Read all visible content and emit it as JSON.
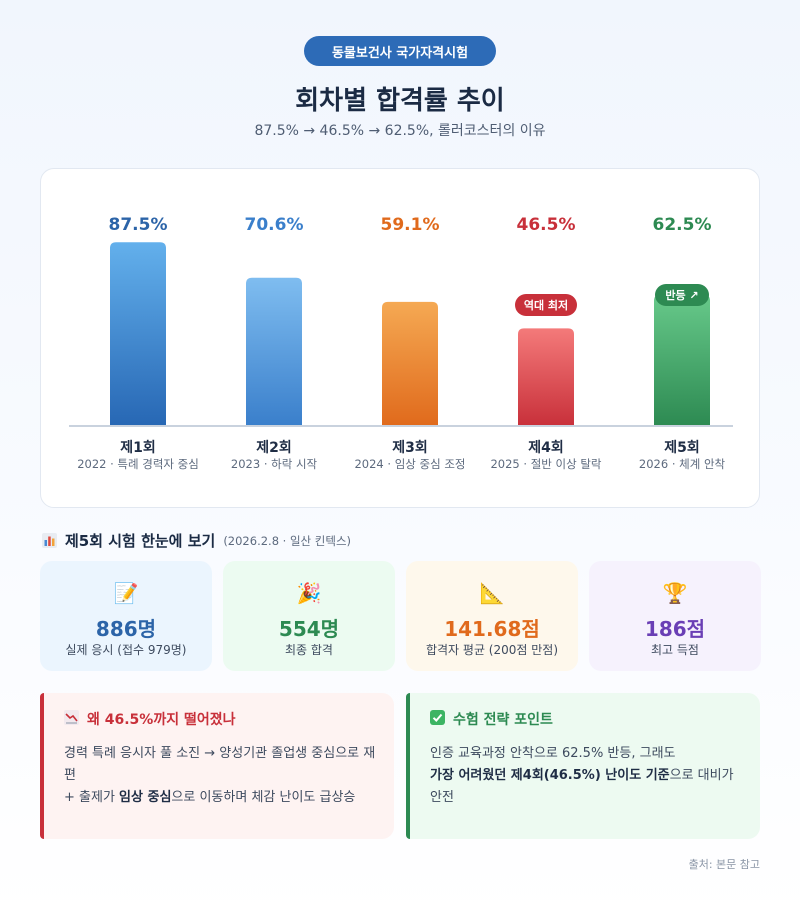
{
  "header": {
    "badge": "동물보건사 국가자격시험",
    "title": "회차별 합격률 추이",
    "subtitle": "87.5% → 46.5% → 62.5%, 롤러코스터의 이유"
  },
  "chart_data": {
    "type": "bar",
    "title": "",
    "xlabel": "",
    "ylabel": "",
    "ylim": [
      0,
      100
    ],
    "grid": false,
    "categories": [
      "제1회",
      "제2회",
      "제3회",
      "제4회",
      "제5회"
    ],
    "category_notes": [
      "2022 · 특례 경력자 중심",
      "2023 · 하락 시작",
      "2024 · 임상 중심 조정",
      "2025 · 절반 이상 탈락",
      "2026 · 체계 안착"
    ],
    "values": [
      87.5,
      70.6,
      59.1,
      46.5,
      62.5
    ],
    "value_labels": [
      "87.5%",
      "70.6%",
      "59.1%",
      "46.5%",
      "62.5%"
    ],
    "bar_colors": [
      [
        "#63b0ec",
        "#2767b4"
      ],
      [
        "#7fbdf0",
        "#3a7fcb"
      ],
      [
        "#f5a953",
        "#e06a1c"
      ],
      [
        "#f47a7a",
        "#c8303a"
      ],
      [
        "#67c98a",
        "#2d8a52"
      ]
    ],
    "label_colors": [
      "#2c64a8",
      "#3a7fcb",
      "#e06a1c",
      "#c8303a",
      "#2d8a52"
    ],
    "annotations": [
      {
        "bar": 3,
        "text": "역대 최저",
        "color": "#c8303a"
      },
      {
        "bar": 4,
        "text": "반등 ↗",
        "color": "#2d8a52"
      }
    ]
  },
  "summary": {
    "title": "제5회 시험 한눈에 보기",
    "date": "(2026.2.8 · 일산 킨텍스)",
    "title_icon": "bar-chart-icon",
    "cards": [
      {
        "icon": "memo-icon",
        "glyph": "📝",
        "value": "886명",
        "label": "실제 응시 (접수 979명)",
        "color": "#2c64a8",
        "bg": "#ebf5fe"
      },
      {
        "icon": "party-popper-icon",
        "glyph": "🎉",
        "value": "554명",
        "label": "최종 합격",
        "color": "#2d8a52",
        "bg": "#ecfbf1"
      },
      {
        "icon": "triangle-ruler-icon",
        "glyph": "📐",
        "value": "141.68점",
        "label": "합격자 평균 (200점 만점)",
        "color": "#e06a1c",
        "bg": "#fef8ec"
      },
      {
        "icon": "trophy-icon",
        "glyph": "🏆",
        "value": "186점",
        "label": "최고 득점",
        "color": "#6a3fb5",
        "bg": "#f6f2fd"
      }
    ]
  },
  "notes": {
    "why": {
      "icon": "chart-decreasing-icon",
      "title": "왜 46.5%까지 떨어졌나",
      "line1": "경력 특례 응시자 풀 소진 → 양성기관 졸업생 중심으로 재편",
      "line2_pre": "+ 출제가 ",
      "line2_bold": "임상 중심",
      "line2_post": "으로 이동하며 체감 난이도 급상승"
    },
    "strategy": {
      "icon": "check-mark-icon",
      "title": "수험 전략 포인트",
      "line1": "인증 교육과정 안착으로 62.5% 반등, 그래도",
      "line2_bold": "가장 어려웠던 제4회(46.5%) 난이도 기준",
      "line2_post": "으로 대비가 안전"
    }
  },
  "source": "출처: 본문 참고"
}
